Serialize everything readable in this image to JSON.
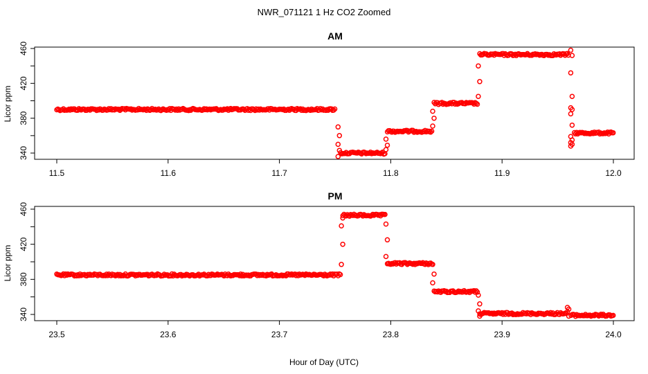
{
  "figure": {
    "title": "NWR_071121  1 Hz CO2 Zoomed",
    "xlabel": "Hour of Day (UTC)"
  },
  "colors": {
    "points": "#ff0000",
    "axes": "#000000",
    "background": "#ffffff"
  },
  "chart_data": [
    {
      "type": "scatter",
      "title": "AM",
      "xlabel": "",
      "ylabel": "Licor ppm",
      "xlim": [
        11.5,
        12.0
      ],
      "ylim": [
        333,
        464
      ],
      "xticks": [
        "11.5",
        "11.6",
        "11.7",
        "11.8",
        "11.9",
        "12.0"
      ],
      "yticks": [
        "340",
        "380",
        "420",
        "460"
      ],
      "grid": false,
      "segments": [
        {
          "x0": 11.5,
          "x1": 11.75,
          "y": 390
        },
        {
          "x0": 11.755,
          "x1": 11.795,
          "y": 340
        },
        {
          "x0": 11.797,
          "x1": 11.837,
          "y": 365
        },
        {
          "x0": 11.839,
          "x1": 11.878,
          "y": 397
        },
        {
          "x0": 11.88,
          "x1": 11.96,
          "y": 453
        },
        {
          "x0": 11.965,
          "x1": 12.0,
          "y": 363
        }
      ],
      "transitions": [
        {
          "x": 11.753,
          "y": [
            370,
            360,
            350,
            343,
            336
          ]
        },
        {
          "x": 11.796,
          "y": [
            344,
            349,
            356
          ]
        },
        {
          "x": 11.838,
          "y": [
            371,
            380,
            388
          ]
        },
        {
          "x": 11.879,
          "y": [
            405,
            422,
            440
          ]
        },
        {
          "x": 11.962,
          "y": [
            458,
            452,
            432,
            405,
            392,
            390,
            385,
            372,
            359,
            355,
            352,
            350,
            348
          ]
        }
      ]
    },
    {
      "type": "scatter",
      "title": "PM",
      "xlabel": "",
      "ylabel": "Licor ppm",
      "xlim": [
        23.5,
        24.0
      ],
      "ylim": [
        333,
        462
      ],
      "xticks": [
        "23.5",
        "23.6",
        "23.7",
        "23.8",
        "23.9",
        "24.0"
      ],
      "yticks": [
        "340",
        "380",
        "420",
        "460"
      ],
      "grid": false,
      "segments": [
        {
          "x0": 23.5,
          "x1": 23.755,
          "y": 385
        },
        {
          "x0": 23.757,
          "x1": 23.795,
          "y": 453
        },
        {
          "x0": 23.797,
          "x1": 23.837,
          "y": 398
        },
        {
          "x0": 23.839,
          "x1": 23.878,
          "y": 366
        },
        {
          "x0": 23.88,
          "x1": 23.958,
          "y": 341
        },
        {
          "x0": 23.962,
          "x1": 24.0,
          "y": 339
        }
      ],
      "transitions": [
        {
          "x": 23.756,
          "y": [
            397,
            420,
            441,
            450
          ]
        },
        {
          "x": 23.796,
          "y": [
            443,
            425,
            406
          ]
        },
        {
          "x": 23.838,
          "y": [
            397,
            386,
            376
          ]
        },
        {
          "x": 23.879,
          "y": [
            362,
            352,
            344,
            338
          ]
        },
        {
          "x": 23.959,
          "y": [
            348,
            346,
            343,
            338
          ]
        }
      ]
    }
  ]
}
